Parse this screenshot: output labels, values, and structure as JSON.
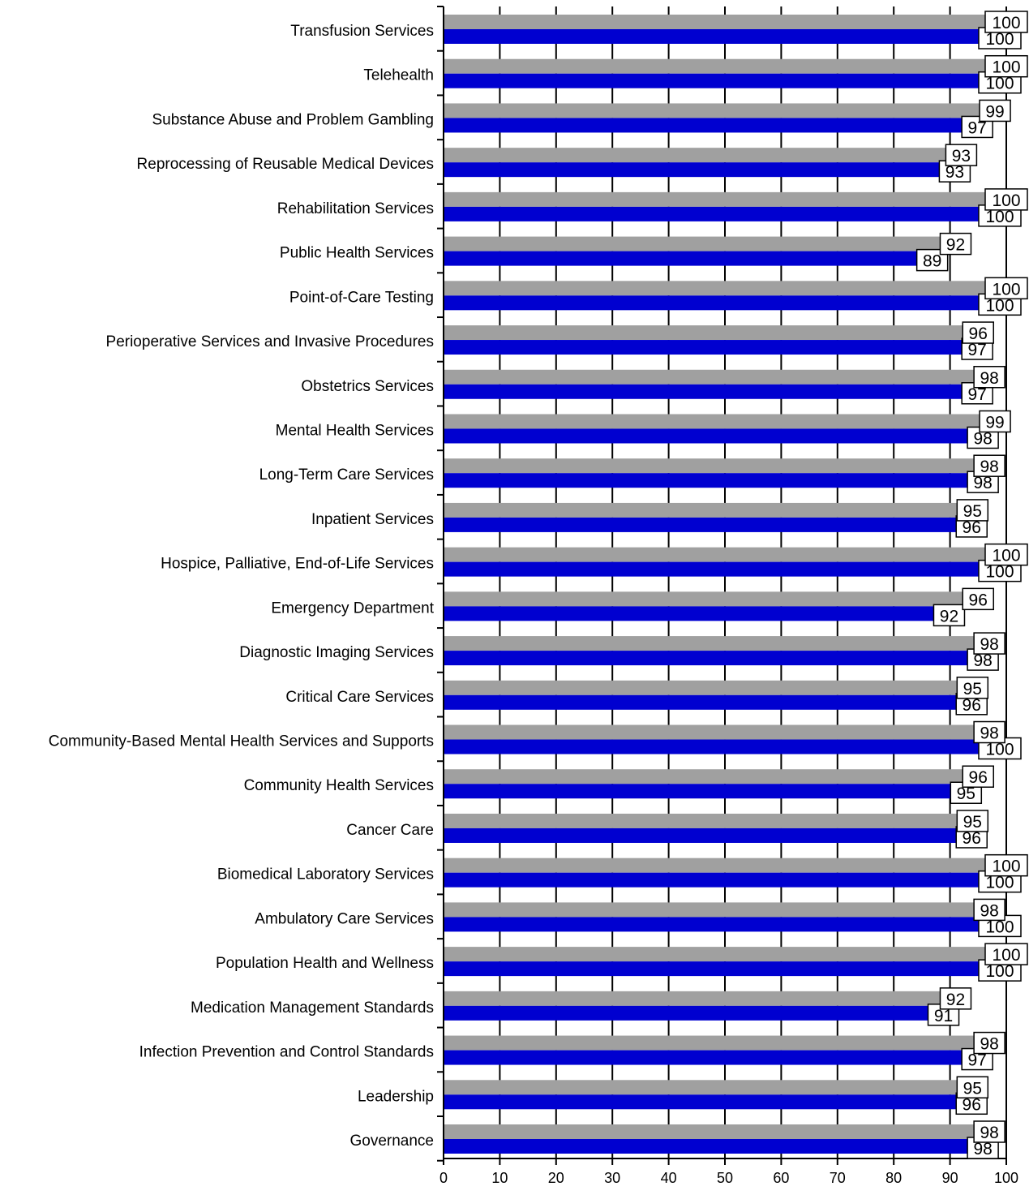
{
  "chart_data": {
    "type": "bar",
    "orientation": "horizontal",
    "categories": [
      "Transfusion Services",
      "Telehealth",
      "Substance Abuse and Problem Gambling",
      "Reprocessing of Reusable Medical Devices",
      "Rehabilitation Services",
      "Public Health Services",
      "Point-of-Care Testing",
      "Perioperative Services and Invasive Procedures",
      "Obstetrics Services",
      "Mental Health Services",
      "Long-Term Care Services",
      "Inpatient Services",
      "Hospice, Palliative, End-of-Life Services",
      "Emergency Department",
      "Diagnostic Imaging Services",
      "Critical Care Services",
      "Community-Based Mental Health Services and Supports",
      "Community Health Services",
      "Cancer Care",
      "Biomedical Laboratory Services",
      "Ambulatory Care Services",
      "Population Health and Wellness",
      "Medication Management Standards",
      "Infection Prevention and Control Standards",
      "Leadership",
      "Governance"
    ],
    "series": [
      {
        "color": "#a0a0a0",
        "values": [
          100,
          100,
          99,
          93,
          100,
          92,
          100,
          96,
          98,
          99,
          98,
          95,
          100,
          96,
          98,
          95,
          98,
          96,
          95,
          100,
          98,
          100,
          92,
          98,
          95,
          98
        ]
      },
      {
        "color": "#0000d0",
        "values": [
          100,
          100,
          97,
          93,
          100,
          89,
          100,
          97,
          97,
          98,
          98,
          96,
          100,
          92,
          98,
          96,
          100,
          95,
          96,
          100,
          100,
          100,
          91,
          97,
          96,
          98
        ]
      }
    ],
    "xlim": [
      0,
      100
    ],
    "xticks": [
      0,
      10,
      20,
      30,
      40,
      50,
      60,
      70,
      80,
      90,
      100
    ],
    "grid": true,
    "legend": "none",
    "data_labels": true
  }
}
